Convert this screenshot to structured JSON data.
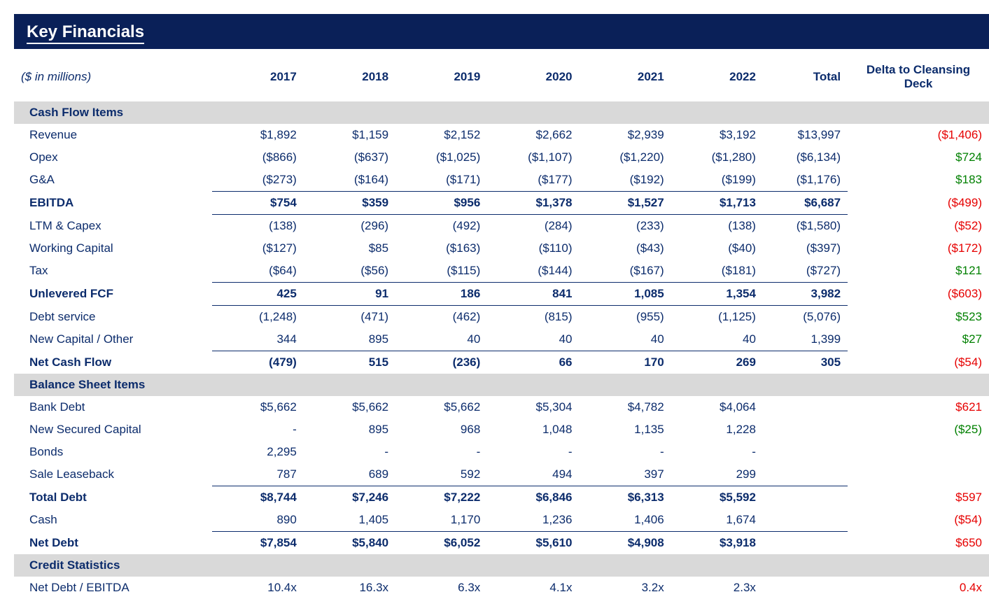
{
  "page": {
    "title": "Key Financials",
    "unit_note": "($ in millions)",
    "background_color": "#ffffff",
    "navy": "#0c2c6c",
    "navy_dark": "#0a2058",
    "section_grey": "#d9d9d9",
    "red": "#e60000",
    "green": "#008000",
    "font_family": "Arial",
    "base_font_size_pt": 13
  },
  "columns": {
    "years": [
      "2017",
      "2018",
      "2019",
      "2020",
      "2021",
      "2022"
    ],
    "total": "Total",
    "delta": "Delta to Cleansing Deck"
  },
  "sections": {
    "cash_flow": "Cash Flow Items",
    "balance": "Balance Sheet Items",
    "credit": "Credit Statistics"
  },
  "rows": {
    "revenue": {
      "label": "Revenue",
      "y": [
        "$1,892",
        "$1,159",
        "$2,152",
        "$2,662",
        "$2,939",
        "$3,192"
      ],
      "total": "$13,997",
      "delta": "($1,406)",
      "delta_color": "red"
    },
    "opex": {
      "label": "Opex",
      "y": [
        "($866)",
        "($637)",
        "($1,025)",
        "($1,107)",
        "($1,220)",
        "($1,280)"
      ],
      "total": "($6,134)",
      "delta": "$724",
      "delta_color": "green"
    },
    "ga": {
      "label": "G&A",
      "y": [
        "($273)",
        "($164)",
        "($171)",
        "($177)",
        "($192)",
        "($199)"
      ],
      "total": "($1,176)",
      "delta": "$183",
      "delta_color": "green"
    },
    "ebitda": {
      "label": "EBITDA",
      "y": [
        "$754",
        "$359",
        "$956",
        "$1,378",
        "$1,527",
        "$1,713"
      ],
      "total": "$6,687",
      "delta": "($499)",
      "delta_color": "red"
    },
    "ltm_capex": {
      "label": "LTM & Capex",
      "y": [
        "(138)",
        "(296)",
        "(492)",
        "(284)",
        "(233)",
        "(138)"
      ],
      "total": "($1,580)",
      "delta": "($52)",
      "delta_color": "red"
    },
    "wc": {
      "label": "Working Capital",
      "y": [
        "($127)",
        "$85",
        "($163)",
        "($110)",
        "($43)",
        "($40)"
      ],
      "total": "($397)",
      "delta": "($172)",
      "delta_color": "red"
    },
    "tax": {
      "label": "Tax",
      "y": [
        "($64)",
        "($56)",
        "($115)",
        "($144)",
        "($167)",
        "($181)"
      ],
      "total": "($727)",
      "delta": "$121",
      "delta_color": "green"
    },
    "ufcf": {
      "label": "Unlevered FCF",
      "y": [
        "425",
        "91",
        "186",
        "841",
        "1,085",
        "1,354"
      ],
      "total": "3,982",
      "delta": "($603)",
      "delta_color": "red"
    },
    "debt_service": {
      "label": "Debt service",
      "y": [
        "(1,248)",
        "(471)",
        "(462)",
        "(815)",
        "(955)",
        "(1,125)"
      ],
      "total": "(5,076)",
      "delta": "$523",
      "delta_color": "green"
    },
    "new_cap_other": {
      "label": "New Capital / Other",
      "y": [
        "344",
        "895",
        "40",
        "40",
        "40",
        "40"
      ],
      "total": "1,399",
      "delta": "$27",
      "delta_color": "green"
    },
    "net_cf": {
      "label": "Net Cash Flow",
      "y": [
        "(479)",
        "515",
        "(236)",
        "66",
        "170",
        "269"
      ],
      "total": "305",
      "delta": "($54)",
      "delta_color": "red"
    },
    "bank_debt": {
      "label": "Bank Debt",
      "y": [
        "$5,662",
        "$5,662",
        "$5,662",
        "$5,304",
        "$4,782",
        "$4,064"
      ],
      "total": "",
      "delta": "$621",
      "delta_color": "red"
    },
    "new_secured": {
      "label": "New Secured Capital",
      "y": [
        "-",
        "895",
        "968",
        "1,048",
        "1,135",
        "1,228"
      ],
      "total": "",
      "delta": "($25)",
      "delta_color": "green"
    },
    "bonds": {
      "label": "Bonds",
      "y": [
        "2,295",
        "-",
        "-",
        "-",
        "-",
        "-"
      ],
      "total": "",
      "delta": ""
    },
    "sale_lease": {
      "label": "Sale Leaseback",
      "y": [
        "787",
        "689",
        "592",
        "494",
        "397",
        "299"
      ],
      "total": "",
      "delta": ""
    },
    "total_debt": {
      "label": "Total Debt",
      "y": [
        "$8,744",
        "$7,246",
        "$7,222",
        "$6,846",
        "$6,313",
        "$5,592"
      ],
      "total": "",
      "delta": "$597",
      "delta_color": "red"
    },
    "cash": {
      "label": "Cash",
      "y": [
        "890",
        "1,405",
        "1,170",
        "1,236",
        "1,406",
        "1,674"
      ],
      "total": "",
      "delta": "($54)",
      "delta_color": "red"
    },
    "net_debt": {
      "label": "Net Debt",
      "y": [
        "$7,854",
        "$5,840",
        "$6,052",
        "$5,610",
        "$4,908",
        "$3,918"
      ],
      "total": "",
      "delta": "$650",
      "delta_color": "red"
    },
    "nd_ebitda": {
      "label": "Net Debt / EBITDA",
      "y": [
        "10.4x",
        "16.3x",
        "6.3x",
        "4.1x",
        "3.2x",
        "2.3x"
      ],
      "total": "",
      "delta": "0.4x",
      "delta_color": "red"
    }
  }
}
